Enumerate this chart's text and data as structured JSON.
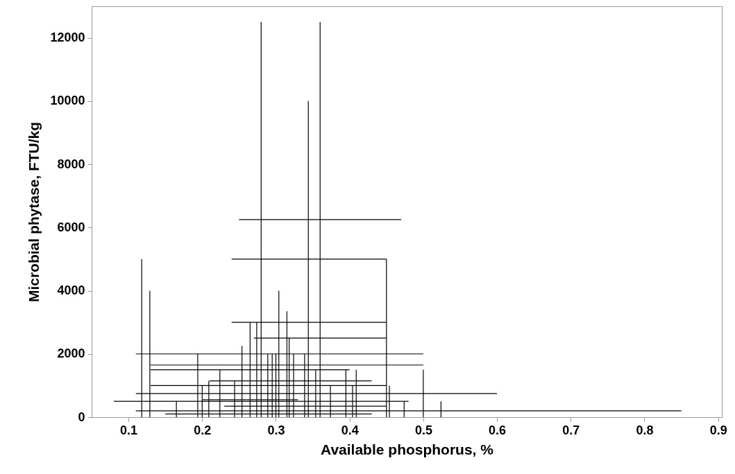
{
  "chart_data": {
    "type": "line",
    "xlabel": "Available phosphorus, %",
    "ylabel": "Microbial phytase, FTU/kg",
    "xlim": [
      0.05,
      0.905
    ],
    "ylim": [
      0,
      13000
    ],
    "xticks": [
      0.1,
      0.2,
      0.3,
      0.4,
      0.5,
      0.6,
      0.7,
      0.8,
      0.9
    ],
    "yticks": [
      0,
      2000,
      4000,
      6000,
      8000,
      10000,
      12000
    ],
    "grid": false,
    "marker": "none",
    "line_style": "solid",
    "series": [
      {
        "color": "#000000",
        "x": [
          0.28,
          0.28
        ],
        "values": [
          0,
          12500
        ]
      },
      {
        "color": "#000000",
        "x": [
          0.36,
          0.36
        ],
        "values": [
          0,
          12500
        ]
      },
      {
        "color": "#000000",
        "x": [
          0.344,
          0.344
        ],
        "values": [
          0,
          10000
        ]
      },
      {
        "color": "#000000",
        "x": [
          0.118,
          0.118
        ],
        "values": [
          0,
          5000
        ]
      },
      {
        "color": "#000000",
        "x": [
          0.129,
          0.129
        ],
        "values": [
          0,
          4000
        ]
      },
      {
        "color": "#000000",
        "x": [
          0.304,
          0.304
        ],
        "values": [
          0,
          4000
        ]
      },
      {
        "color": "#000000",
        "x": [
          0.315,
          0.315
        ],
        "values": [
          0,
          3350
        ]
      },
      {
        "color": "#000000",
        "x": [
          0.265,
          0.265
        ],
        "values": [
          0,
          3000
        ]
      },
      {
        "color": "#000000",
        "x": [
          0.274,
          0.274
        ],
        "values": [
          0,
          3000
        ]
      },
      {
        "color": "#000000",
        "x": [
          0.318,
          0.318
        ],
        "values": [
          0,
          2500
        ]
      },
      {
        "color": "#000000",
        "x": [
          0.254,
          0.254
        ],
        "values": [
          0,
          2250
        ]
      },
      {
        "color": "#000000",
        "x": [
          0.45,
          0.45
        ],
        "values": [
          0,
          5000
        ]
      },
      {
        "color": "#000000",
        "x": [
          0.194,
          0.194
        ],
        "values": [
          0,
          2000
        ]
      },
      {
        "color": "#000000",
        "x": [
          0.289,
          0.289
        ],
        "values": [
          0,
          2000
        ]
      },
      {
        "color": "#000000",
        "x": [
          0.295,
          0.295
        ],
        "values": [
          0,
          2000
        ]
      },
      {
        "color": "#000000",
        "x": [
          0.3,
          0.3
        ],
        "values": [
          0,
          2000
        ]
      },
      {
        "color": "#000000",
        "x": [
          0.324,
          0.324
        ],
        "values": [
          0,
          2000
        ]
      },
      {
        "color": "#000000",
        "x": [
          0.339,
          0.339
        ],
        "values": [
          0,
          2000
        ]
      },
      {
        "color": "#000000",
        "x": [
          0.354,
          0.354
        ],
        "values": [
          0,
          1500
        ]
      },
      {
        "color": "#000000",
        "x": [
          0.395,
          0.395
        ],
        "values": [
          0,
          1500
        ]
      },
      {
        "color": "#000000",
        "x": [
          0.409,
          0.409
        ],
        "values": [
          0,
          1500
        ]
      },
      {
        "color": "#000000",
        "x": [
          0.5,
          0.5
        ],
        "values": [
          0,
          1500
        ]
      },
      {
        "color": "#000000",
        "x": [
          0.224,
          0.224
        ],
        "values": [
          0,
          1500
        ]
      },
      {
        "color": "#000000",
        "x": [
          0.209,
          0.209
        ],
        "values": [
          0,
          1150
        ]
      },
      {
        "color": "#000000",
        "x": [
          0.244,
          0.244
        ],
        "values": [
          0,
          1150
        ]
      },
      {
        "color": "#000000",
        "x": [
          0.454,
          0.454
        ],
        "values": [
          0,
          1000
        ]
      },
      {
        "color": "#000000",
        "x": [
          0.2,
          0.2
        ],
        "values": [
          0,
          1000
        ]
      },
      {
        "color": "#000000",
        "x": [
          0.374,
          0.374
        ],
        "values": [
          0,
          1000
        ]
      },
      {
        "color": "#000000",
        "x": [
          0.404,
          0.404
        ],
        "values": [
          0,
          1000
        ]
      },
      {
        "color": "#000000",
        "x": [
          0.165,
          0.165
        ],
        "values": [
          0,
          500
        ]
      },
      {
        "color": "#000000",
        "x": [
          0.474,
          0.474
        ],
        "values": [
          0,
          500
        ]
      },
      {
        "color": "#000000",
        "x": [
          0.524,
          0.524
        ],
        "values": [
          0,
          500
        ]
      },
      {
        "color": "#000000",
        "x": [
          0.25,
          0.47
        ],
        "values": [
          6250,
          6250
        ]
      },
      {
        "color": "#000000",
        "x": [
          0.24,
          0.45
        ],
        "values": [
          5000,
          5000
        ]
      },
      {
        "color": "#000000",
        "x": [
          0.24,
          0.45
        ],
        "values": [
          3000,
          3000
        ]
      },
      {
        "color": "#000000",
        "x": [
          0.27,
          0.45
        ],
        "values": [
          2500,
          2500
        ]
      },
      {
        "color": "#000000",
        "x": [
          0.11,
          0.5
        ],
        "values": [
          2000,
          2000
        ]
      },
      {
        "color": "#000000",
        "x": [
          0.13,
          0.5
        ],
        "values": [
          1650,
          1650
        ]
      },
      {
        "color": "#000000",
        "x": [
          0.13,
          0.4
        ],
        "values": [
          1500,
          1500
        ]
      },
      {
        "color": "#000000",
        "x": [
          0.21,
          0.43
        ],
        "values": [
          1150,
          1150
        ]
      },
      {
        "color": "#000000",
        "x": [
          0.13,
          0.45
        ],
        "values": [
          1000,
          1000
        ]
      },
      {
        "color": "#000000",
        "x": [
          0.11,
          0.6
        ],
        "values": [
          750,
          750
        ]
      },
      {
        "color": "#000000",
        "x": [
          0.08,
          0.48
        ],
        "values": [
          500,
          500
        ]
      },
      {
        "color": "#000000",
        "x": [
          0.2,
          0.33
        ],
        "values": [
          550,
          550
        ]
      },
      {
        "color": "#000000",
        "x": [
          0.23,
          0.45
        ],
        "values": [
          350,
          350
        ]
      },
      {
        "color": "#000000",
        "x": [
          0.11,
          0.85
        ],
        "values": [
          200,
          200
        ]
      },
      {
        "color": "#000000",
        "x": [
          0.15,
          0.43
        ],
        "values": [
          100,
          100
        ]
      }
    ]
  }
}
